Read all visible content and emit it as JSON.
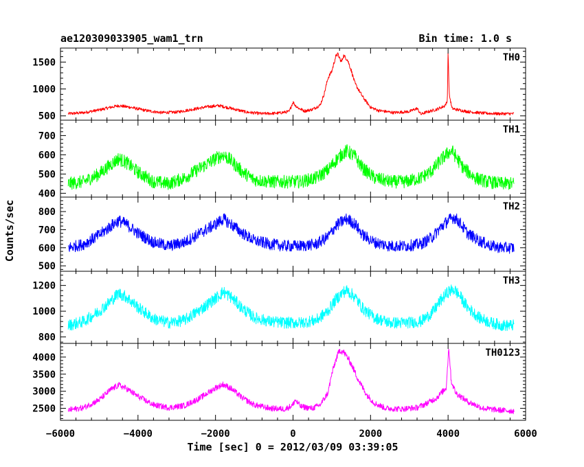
{
  "chart_data": {
    "type": "line",
    "title": "ae120309033905_wam1_trn",
    "bin_time": "Bin time: 1.0 s",
    "xlabel": "Time [sec] 0 = 2012/03/09 03:39:05",
    "ylabel": "Counts/sec",
    "xlim": [
      -6000,
      6000
    ],
    "x_ticks": [
      -6000,
      -4000,
      -2000,
      0,
      2000,
      4000,
      6000
    ],
    "x_tick_labels": [
      "−6000",
      "−4000",
      "−2000",
      "0",
      "2000",
      "4000",
      "6000"
    ],
    "grid": false,
    "panels": [
      {
        "name": "TH0",
        "color": "#ff0000",
        "ylim": [
          420,
          1760
        ],
        "yticks": [
          500,
          1000,
          1500
        ],
        "x": [
          -5800,
          -5400,
          -5000,
          -4700,
          -4500,
          -4200,
          -3800,
          -3400,
          -3000,
          -2600,
          -2200,
          -1900,
          -1600,
          -1200,
          -800,
          -400,
          -100,
          0,
          50,
          150,
          300,
          500,
          700,
          800,
          900,
          1000,
          1100,
          1150,
          1250,
          1300,
          1400,
          1500,
          1600,
          1800,
          2000,
          2200,
          2600,
          3000,
          3200,
          3300,
          3400,
          3700,
          3900,
          3980,
          4000,
          4030,
          4100,
          4200,
          4500,
          4900,
          5300,
          5700
        ],
        "values": [
          540,
          560,
          610,
          660,
          690,
          660,
          600,
          560,
          570,
          620,
          670,
          690,
          640,
          570,
          540,
          550,
          580,
          760,
          700,
          640,
          590,
          620,
          700,
          900,
          1200,
          1330,
          1600,
          1650,
          1500,
          1620,
          1550,
          1350,
          1100,
          850,
          660,
          600,
          560,
          580,
          640,
          530,
          560,
          620,
          680,
          760,
          1700,
          900,
          640,
          620,
          580,
          550,
          540,
          540
        ],
        "noise": 28
      },
      {
        "name": "TH1",
        "color": "#00ff00",
        "ylim": [
          380,
          780
        ],
        "yticks": [
          400,
          500,
          600,
          700
        ],
        "x": [
          -5800,
          -5400,
          -5000,
          -4700,
          -4500,
          -4300,
          -4000,
          -3600,
          -3200,
          -2800,
          -2400,
          -2000,
          -1800,
          -1600,
          -1300,
          -1000,
          -600,
          -200,
          200,
          600,
          900,
          1100,
          1300,
          1400,
          1600,
          1800,
          2100,
          2500,
          2900,
          3300,
          3600,
          3800,
          4000,
          4100,
          4200,
          4400,
          4700,
          5000,
          5400,
          5700
        ],
        "values": [
          450,
          460,
          500,
          550,
          580,
          560,
          510,
          460,
          450,
          480,
          530,
          580,
          600,
          570,
          510,
          470,
          460,
          460,
          460,
          480,
          520,
          570,
          610,
          620,
          590,
          530,
          480,
          460,
          460,
          480,
          520,
          570,
          610,
          620,
          590,
          530,
          480,
          460,
          450,
          450
        ],
        "noise": 34
      },
      {
        "name": "TH2",
        "color": "#0000ff",
        "ylim": [
          470,
          880
        ],
        "yticks": [
          500,
          600,
          700,
          800
        ],
        "x": [
          -5800,
          -5400,
          -5000,
          -4700,
          -4500,
          -4300,
          -4000,
          -3600,
          -3200,
          -2800,
          -2400,
          -2000,
          -1800,
          -1600,
          -1300,
          -1000,
          -600,
          -200,
          200,
          600,
          900,
          1100,
          1300,
          1400,
          1600,
          1800,
          2100,
          2500,
          2900,
          3300,
          3600,
          3800,
          4000,
          4150,
          4300,
          4500,
          4800,
          5100,
          5400,
          5700
        ],
        "values": [
          600,
          620,
          670,
          720,
          750,
          730,
          680,
          630,
          610,
          630,
          680,
          730,
          760,
          730,
          680,
          640,
          620,
          610,
          610,
          620,
          660,
          720,
          750,
          760,
          730,
          670,
          630,
          610,
          610,
          620,
          660,
          710,
          750,
          770,
          740,
          680,
          640,
          610,
          600,
          600
        ],
        "noise": 32
      },
      {
        "name": "TH3",
        "color": "#00ffff",
        "ylim": [
          750,
          1310
        ],
        "yticks": [
          800,
          1000,
          1200
        ],
        "x": [
          -5800,
          -5400,
          -5000,
          -4700,
          -4500,
          -4300,
          -4000,
          -3600,
          -3200,
          -2800,
          -2400,
          -2000,
          -1800,
          -1600,
          -1300,
          -1000,
          -600,
          -200,
          200,
          600,
          900,
          1100,
          1300,
          1400,
          1600,
          1800,
          2100,
          2500,
          2900,
          3300,
          3600,
          3800,
          4000,
          4150,
          4300,
          4500,
          4800,
          5100,
          5400,
          5700
        ],
        "values": [
          890,
          920,
          1000,
          1080,
          1140,
          1110,
          1030,
          940,
          910,
          930,
          1010,
          1100,
          1150,
          1110,
          1020,
          950,
          920,
          910,
          910,
          930,
          1000,
          1090,
          1150,
          1160,
          1110,
          1020,
          950,
          910,
          910,
          920,
          990,
          1080,
          1150,
          1170,
          1120,
          1030,
          950,
          910,
          890,
          890
        ],
        "noise": 45
      },
      {
        "name": "TH0123",
        "color": "#ff00ff",
        "ylim": [
          2150,
          4400
        ],
        "yticks": [
          2500,
          3000,
          3500,
          4000
        ],
        "x": [
          -5800,
          -5400,
          -5000,
          -4700,
          -4500,
          -4300,
          -4000,
          -3600,
          -3200,
          -2800,
          -2400,
          -2000,
          -1800,
          -1600,
          -1300,
          -1000,
          -600,
          -200,
          0,
          50,
          200,
          500,
          700,
          900,
          1000,
          1100,
          1200,
          1300,
          1400,
          1500,
          1700,
          1900,
          2100,
          2400,
          2800,
          3200,
          3400,
          3700,
          3950,
          4020,
          4080,
          4200,
          4500,
          4900,
          5300,
          5700
        ],
        "values": [
          2450,
          2520,
          2750,
          3050,
          3180,
          3080,
          2850,
          2600,
          2520,
          2580,
          2800,
          3100,
          3200,
          3080,
          2800,
          2600,
          2500,
          2480,
          2600,
          2750,
          2550,
          2500,
          2600,
          2950,
          3500,
          3900,
          4200,
          4150,
          4000,
          3800,
          3300,
          2900,
          2650,
          2500,
          2480,
          2520,
          2620,
          2800,
          3100,
          4300,
          3300,
          2950,
          2700,
          2500,
          2450,
          2420
        ],
        "noise": 85
      }
    ]
  }
}
